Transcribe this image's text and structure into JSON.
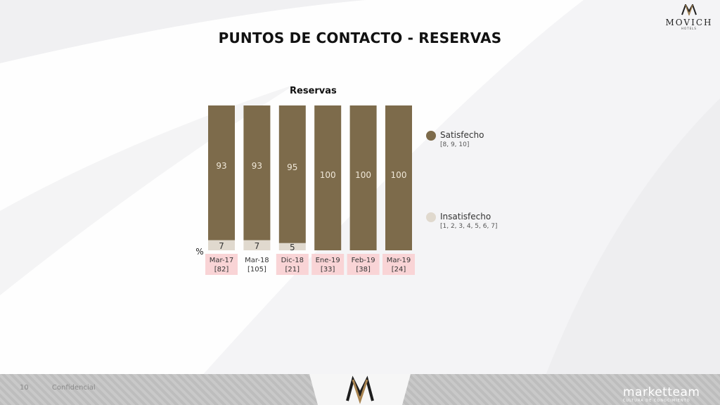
{
  "brand": {
    "name": "MOVICH",
    "sub": "HOTELS"
  },
  "title": "PUNTOS DE CONTACTO - RESERVAS",
  "footer": {
    "page": "10",
    "confidential": "Confidencial",
    "company": "marketteam",
    "company_tag": "CULTURA DE CONOCIMIENTO"
  },
  "chart_data": {
    "type": "bar",
    "stacked": true,
    "title": "Reservas",
    "ylabel": "%",
    "ylim": [
      0,
      100
    ],
    "categories": [
      "Mar-17",
      "Mar-18",
      "Dic-18",
      "Ene-19",
      "Feb-19",
      "Mar-19"
    ],
    "bases": [
      "[82]",
      "[105]",
      "[21]",
      "[33]",
      "[38]",
      "[24]"
    ],
    "highlighted": [
      true,
      false,
      true,
      true,
      true,
      true
    ],
    "series": [
      {
        "name": "Insatisfecho",
        "scale": "[1, 2, 3, 4, 5, 6, 7]",
        "color": "#e0d9ce",
        "values": [
          7,
          7,
          5,
          0,
          0,
          0
        ]
      },
      {
        "name": "Satisfecho",
        "scale": "[8, 9, 10]",
        "color": "#7d6b4b",
        "values": [
          93,
          93,
          95,
          100,
          100,
          100
        ]
      }
    ],
    "highlight_color": "#f9d4d6",
    "legend_position": "right",
    "grid": false
  }
}
